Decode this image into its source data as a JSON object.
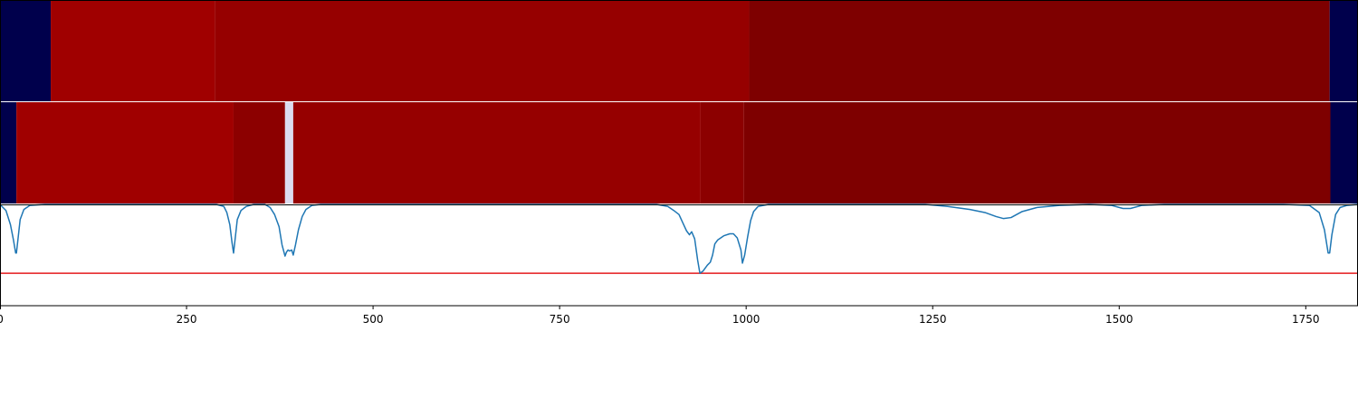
{
  "chart_data": {
    "type": "heatmap",
    "xlim": [
      0,
      1820
    ],
    "x_ticks": [
      0,
      250,
      500,
      750,
      1000,
      1250,
      1500,
      1750
    ],
    "x_tick_labels": [
      "0",
      "250",
      "500",
      "750",
      "1000",
      "1250",
      "1500",
      "1750"
    ],
    "rows": [
      {
        "segments": [
          {
            "start": 0,
            "end": 68,
            "color": "#00004c"
          },
          {
            "start": 68,
            "end": 288,
            "color": "#a00000"
          },
          {
            "start": 288,
            "end": 1004,
            "color": "#960000"
          },
          {
            "start": 1004,
            "end": 1782,
            "color": "#7e0000"
          },
          {
            "start": 1782,
            "end": 1820,
            "color": "#00004c"
          }
        ]
      },
      {
        "segments": [
          {
            "start": 0,
            "end": 22,
            "color": "#00004c"
          },
          {
            "start": 22,
            "end": 313,
            "color": "#a00000"
          },
          {
            "start": 313,
            "end": 382,
            "color": "#8c0000"
          },
          {
            "start": 382,
            "end": 393,
            "color": "#dcdcf0"
          },
          {
            "start": 393,
            "end": 939,
            "color": "#960000"
          },
          {
            "start": 939,
            "end": 997,
            "color": "#8c0000"
          },
          {
            "start": 997,
            "end": 1783,
            "color": "#7e0000"
          },
          {
            "start": 1783,
            "end": 1820,
            "color": "#00004c"
          }
        ]
      }
    ],
    "line_panel": {
      "ylim": [
        0,
        1
      ],
      "threshold": 0.68,
      "threshold_color": "#e41a1c",
      "line_color": "#1f77b4",
      "points": [
        [
          0,
          0.0
        ],
        [
          8,
          0.06
        ],
        [
          14,
          0.2
        ],
        [
          18,
          0.35
        ],
        [
          21,
          0.48
        ],
        [
          22,
          0.48
        ],
        [
          24,
          0.35
        ],
        [
          27,
          0.15
        ],
        [
          32,
          0.05
        ],
        [
          40,
          0.01
        ],
        [
          60,
          0.0
        ],
        [
          290,
          0.0
        ],
        [
          300,
          0.02
        ],
        [
          304,
          0.08
        ],
        [
          308,
          0.2
        ],
        [
          311,
          0.38
        ],
        [
          313,
          0.48
        ],
        [
          315,
          0.35
        ],
        [
          318,
          0.15
        ],
        [
          323,
          0.06
        ],
        [
          330,
          0.02
        ],
        [
          340,
          0.0
        ],
        [
          355,
          0.0
        ],
        [
          362,
          0.03
        ],
        [
          368,
          0.1
        ],
        [
          374,
          0.22
        ],
        [
          378,
          0.4
        ],
        [
          382,
          0.51
        ],
        [
          384,
          0.47
        ],
        [
          386,
          0.45
        ],
        [
          388,
          0.46
        ],
        [
          391,
          0.45
        ],
        [
          393,
          0.5
        ],
        [
          396,
          0.4
        ],
        [
          400,
          0.25
        ],
        [
          405,
          0.12
        ],
        [
          410,
          0.05
        ],
        [
          418,
          0.01
        ],
        [
          430,
          0.0
        ],
        [
          880,
          0.0
        ],
        [
          895,
          0.02
        ],
        [
          903,
          0.06
        ],
        [
          910,
          0.1
        ],
        [
          915,
          0.18
        ],
        [
          920,
          0.26
        ],
        [
          924,
          0.3
        ],
        [
          927,
          0.27
        ],
        [
          931,
          0.34
        ],
        [
          935,
          0.55
        ],
        [
          938,
          0.68
        ],
        [
          942,
          0.66
        ],
        [
          948,
          0.6
        ],
        [
          952,
          0.57
        ],
        [
          955,
          0.5
        ],
        [
          958,
          0.39
        ],
        [
          962,
          0.35
        ],
        [
          970,
          0.31
        ],
        [
          978,
          0.29
        ],
        [
          983,
          0.29
        ],
        [
          988,
          0.33
        ],
        [
          993,
          0.45
        ],
        [
          995,
          0.58
        ],
        [
          998,
          0.5
        ],
        [
          1002,
          0.32
        ],
        [
          1006,
          0.16
        ],
        [
          1010,
          0.07
        ],
        [
          1016,
          0.02
        ],
        [
          1030,
          0.0
        ],
        [
          1240,
          0.0
        ],
        [
          1270,
          0.02
        ],
        [
          1300,
          0.05
        ],
        [
          1320,
          0.08
        ],
        [
          1335,
          0.12
        ],
        [
          1345,
          0.14
        ],
        [
          1355,
          0.13
        ],
        [
          1370,
          0.07
        ],
        [
          1390,
          0.03
        ],
        [
          1420,
          0.01
        ],
        [
          1460,
          0.0
        ],
        [
          1490,
          0.01
        ],
        [
          1505,
          0.04
        ],
        [
          1515,
          0.04
        ],
        [
          1530,
          0.01
        ],
        [
          1560,
          0.0
        ],
        [
          1720,
          0.0
        ],
        [
          1755,
          0.01
        ],
        [
          1768,
          0.08
        ],
        [
          1775,
          0.25
        ],
        [
          1780,
          0.48
        ],
        [
          1782,
          0.48
        ],
        [
          1785,
          0.3
        ],
        [
          1790,
          0.1
        ],
        [
          1796,
          0.03
        ],
        [
          1805,
          0.01
        ],
        [
          1820,
          0.0
        ]
      ]
    }
  }
}
